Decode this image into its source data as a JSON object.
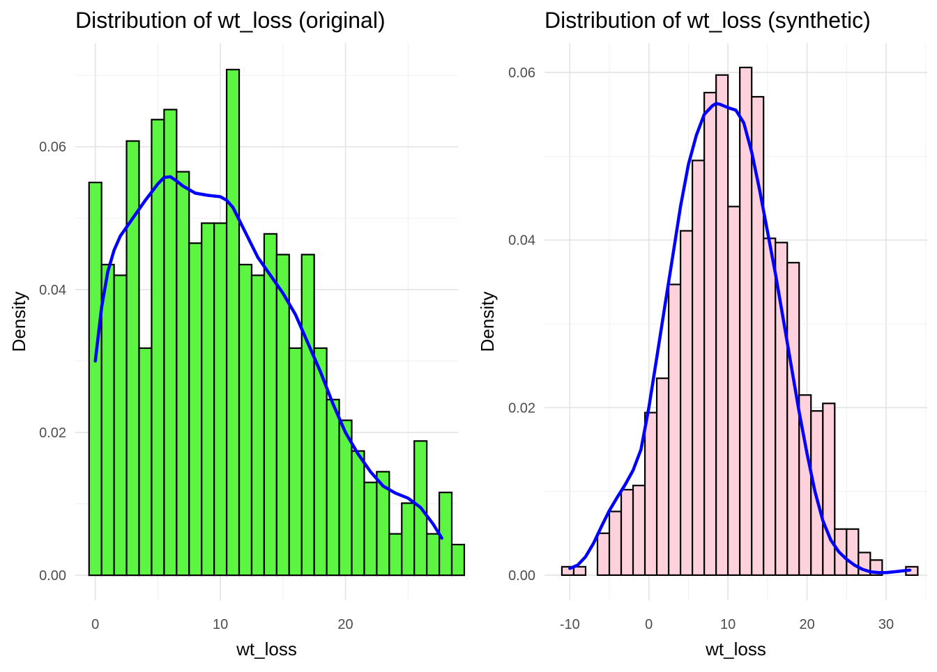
{
  "chart_data": [
    {
      "type": "histogram",
      "title": "Distribution of wt_loss (original)",
      "xlabel": "wt_loss",
      "ylabel": "Density",
      "xlim": [
        -1.6,
        29
      ],
      "ylim": [
        -0.0035,
        0.0745
      ],
      "xticks": [
        0,
        10,
        20
      ],
      "xtick_labels": [
        "0",
        "10",
        "20"
      ],
      "yticks": [
        0,
        0.02,
        0.04,
        0.06
      ],
      "ytick_labels": [
        "0.00",
        "0.02",
        "0.04",
        "0.06"
      ],
      "grid": true,
      "bar_fill": "#5BF542",
      "bar_edge": "#000000",
      "curve_color": "#0000FF",
      "bin_start": -0.5,
      "bin_width": 1.0,
      "values": [
        0.055,
        0.0435,
        0.042,
        0.0608,
        0.0318,
        0.0638,
        0.0652,
        0.0565,
        0.0465,
        0.0493,
        0.0493,
        0.0708,
        0.0435,
        0.042,
        0.0478,
        0.0449,
        0.0318,
        0.0449,
        0.0318,
        0.0246,
        0.0217,
        0.0174,
        0.013,
        0.0145,
        0.0058,
        0.0101,
        0.0188,
        0.0058,
        0.0116,
        0.0043
      ],
      "density_curve": {
        "x": [
          0,
          0.5,
          1,
          1.5,
          2,
          3,
          4,
          5,
          5.5,
          6,
          6.5,
          7,
          8,
          9,
          10,
          10.5,
          11,
          12,
          13,
          14,
          15,
          16,
          17,
          18,
          19,
          20,
          21,
          22,
          23,
          24,
          25,
          26,
          27,
          27.7
        ],
        "y": [
          0.03,
          0.0375,
          0.0425,
          0.0455,
          0.0475,
          0.05,
          0.0525,
          0.0548,
          0.0557,
          0.0558,
          0.0552,
          0.0545,
          0.0535,
          0.0532,
          0.053,
          0.0525,
          0.0515,
          0.048,
          0.0445,
          0.042,
          0.0395,
          0.0365,
          0.0325,
          0.0285,
          0.024,
          0.02,
          0.017,
          0.0145,
          0.0125,
          0.0115,
          0.0108,
          0.0095,
          0.0072,
          0.0052
        ]
      }
    },
    {
      "type": "histogram",
      "title": "Distribution of wt_loss (synthetic)",
      "xlabel": "wt_loss",
      "ylabel": "Density",
      "xlim": [
        -13.2,
        35.2
      ],
      "ylim": [
        -0.003,
        0.0635
      ],
      "xticks": [
        -10,
        0,
        10,
        20,
        30
      ],
      "xtick_labels": [
        "-10",
        "0",
        "10",
        "20",
        "30"
      ],
      "yticks": [
        0,
        0.02,
        0.04,
        0.06
      ],
      "ytick_labels": [
        "0.00",
        "0.02",
        "0.04",
        "0.06"
      ],
      "grid": true,
      "bar_fill": "#FFD1DC",
      "bar_edge": "#000000",
      "curve_color": "#0000FF",
      "bin_start": -11.0,
      "bin_width": 1.5,
      "values": [
        0.001,
        0.001,
        0.0,
        0.005,
        0.0076,
        0.0102,
        0.0107,
        0.0194,
        0.0235,
        0.0347,
        0.0411,
        0.0495,
        0.0576,
        0.0597,
        0.044,
        0.0606,
        0.0571,
        0.0402,
        0.0397,
        0.0373,
        0.0215,
        0.0196,
        0.0205,
        0.0055,
        0.0055,
        0.0027,
        0.0018,
        0.0,
        0.0,
        0.001
      ],
      "density_curve": {
        "x": [
          -10,
          -9,
          -8,
          -7,
          -6,
          -5,
          -4,
          -3,
          -2,
          -1,
          0,
          1,
          2,
          3,
          4,
          5,
          6,
          7,
          8,
          8.5,
          9,
          10,
          11,
          12,
          13,
          14,
          15,
          16,
          17,
          18,
          19,
          20,
          21,
          22,
          23,
          24,
          25,
          26,
          27,
          28,
          29,
          30,
          31,
          32,
          33
        ],
        "y": [
          0.0008,
          0.0012,
          0.0022,
          0.0038,
          0.0058,
          0.0077,
          0.0093,
          0.0108,
          0.0125,
          0.015,
          0.02,
          0.026,
          0.032,
          0.038,
          0.044,
          0.049,
          0.0525,
          0.055,
          0.056,
          0.0563,
          0.0562,
          0.0558,
          0.0555,
          0.054,
          0.0505,
          0.046,
          0.041,
          0.036,
          0.0305,
          0.025,
          0.0195,
          0.0145,
          0.01,
          0.0065,
          0.0042,
          0.0028,
          0.0019,
          0.0012,
          0.0007,
          0.0004,
          0.0003,
          0.0003,
          0.0004,
          0.0005,
          0.0006
        ]
      }
    }
  ]
}
